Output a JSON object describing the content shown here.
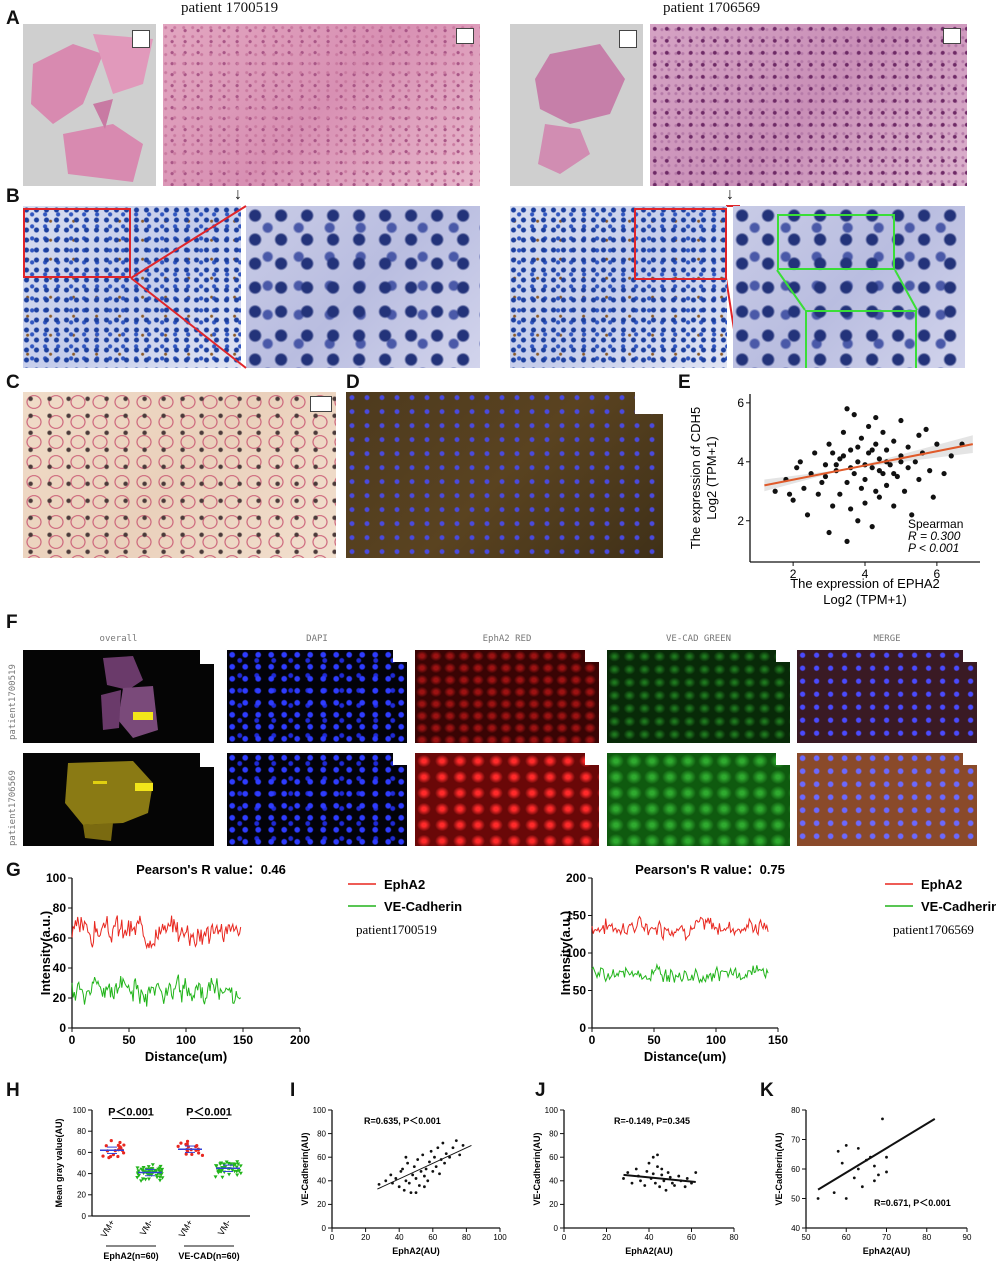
{
  "panel_labels": {
    "A": "A",
    "B": "B",
    "C": "C",
    "D": "D",
    "E": "E",
    "F": "F",
    "G": "G",
    "H": "H",
    "I": "I",
    "J": "J",
    "K": "K"
  },
  "patients": {
    "left": "patient 1700519",
    "right": "patient 1706569"
  },
  "arrow_glyph": "↓",
  "panel_F": {
    "column_titles": [
      "overall",
      "DAPI",
      "EphA2 RED",
      "VE-CAD GREEN",
      "MERGE"
    ],
    "row_labels": [
      "patient1700519",
      "patient1706569"
    ]
  },
  "colors": {
    "red": "#e8271f",
    "green": "#22b41b",
    "orange": "#e05a2a",
    "blue": "#3340d6",
    "black": "#111111"
  },
  "chart_data": [
    {
      "id": "E",
      "type": "scatter",
      "xlabel": "The expression of EPHA2",
      "xlabel2": "Log2 (TPM+1)",
      "ylabel": "The expression of CDH5",
      "ylabel2": "Log2 (TPM+1)",
      "xlim": [
        0.8,
        7.2
      ],
      "ylim": [
        0.6,
        6.3
      ],
      "xticks": [
        2,
        4,
        6
      ],
      "yticks": [
        2,
        4,
        6
      ],
      "annotation": [
        "Spearman",
        "R = 0.300",
        "P < 0.001"
      ],
      "fit": {
        "x": [
          1.2,
          7.0
        ],
        "y": [
          3.2,
          4.6
        ]
      },
      "points": [
        [
          1.5,
          3.0
        ],
        [
          1.8,
          3.4
        ],
        [
          2.0,
          2.7
        ],
        [
          2.1,
          3.8
        ],
        [
          2.3,
          3.1
        ],
        [
          2.4,
          2.2
        ],
        [
          2.5,
          3.6
        ],
        [
          2.6,
          4.3
        ],
        [
          2.7,
          2.9
        ],
        [
          2.8,
          3.3
        ],
        [
          2.9,
          3.9
        ],
        [
          3.0,
          1.6
        ],
        [
          3.0,
          4.6
        ],
        [
          3.1,
          2.5
        ],
        [
          3.2,
          3.7
        ],
        [
          3.3,
          4.1
        ],
        [
          3.3,
          2.9
        ],
        [
          3.4,
          5.0
        ],
        [
          3.5,
          3.3
        ],
        [
          3.5,
          1.3
        ],
        [
          3.6,
          4.4
        ],
        [
          3.6,
          2.4
        ],
        [
          3.7,
          3.6
        ],
        [
          3.7,
          5.6
        ],
        [
          3.8,
          2.0
        ],
        [
          3.8,
          4.0
        ],
        [
          3.9,
          3.1
        ],
        [
          3.9,
          4.8
        ],
        [
          4.0,
          3.4
        ],
        [
          4.0,
          2.6
        ],
        [
          4.1,
          4.3
        ],
        [
          4.1,
          5.2
        ],
        [
          4.2,
          3.8
        ],
        [
          4.2,
          1.8
        ],
        [
          4.3,
          3.0
        ],
        [
          4.3,
          4.6
        ],
        [
          4.4,
          4.1
        ],
        [
          4.4,
          2.8
        ],
        [
          4.5,
          3.6
        ],
        [
          4.5,
          5.0
        ],
        [
          4.6,
          4.4
        ],
        [
          4.6,
          3.2
        ],
        [
          4.7,
          3.9
        ],
        [
          4.8,
          2.5
        ],
        [
          4.8,
          4.7
        ],
        [
          4.9,
          3.5
        ],
        [
          5.0,
          4.2
        ],
        [
          5.0,
          5.4
        ],
        [
          5.1,
          3.0
        ],
        [
          5.2,
          4.5
        ],
        [
          5.2,
          3.8
        ],
        [
          5.3,
          2.2
        ],
        [
          5.4,
          4.0
        ],
        [
          5.5,
          4.9
        ],
        [
          5.5,
          3.4
        ],
        [
          5.6,
          4.3
        ],
        [
          5.8,
          3.7
        ],
        [
          5.9,
          2.8
        ],
        [
          6.0,
          4.6
        ],
        [
          6.2,
          3.6
        ],
        [
          6.4,
          4.2
        ],
        [
          6.7,
          4.6
        ],
        [
          3.2,
          3.9
        ],
        [
          3.4,
          4.2
        ],
        [
          3.6,
          3.8
        ],
        [
          3.8,
          4.5
        ],
        [
          4.0,
          3.9
        ],
        [
          4.2,
          4.4
        ],
        [
          4.4,
          3.7
        ],
        [
          4.6,
          4.0
        ],
        [
          4.8,
          3.6
        ],
        [
          5.0,
          4.0
        ],
        [
          3.1,
          4.3
        ],
        [
          2.9,
          3.5
        ],
        [
          2.2,
          4.0
        ],
        [
          1.9,
          2.9
        ],
        [
          3.5,
          5.8
        ],
        [
          4.3,
          5.5
        ],
        [
          5.7,
          5.1
        ]
      ]
    },
    {
      "id": "G1",
      "type": "line",
      "title": "Pearson's R value：0.46",
      "xlabel": "Distance(um)",
      "ylabel": "Intensity(a.u.)",
      "xlim": [
        0,
        200
      ],
      "ylim": [
        0,
        100
      ],
      "xticks": [
        0,
        50,
        100,
        150,
        200
      ],
      "yticks": [
        0,
        20,
        40,
        60,
        80,
        100
      ],
      "series": [
        {
          "name": "EphA2",
          "color": "#e8271f",
          "mean": 65,
          "amp": 11,
          "seed": 3
        },
        {
          "name": "VE-Cadherin",
          "color": "#22b41b",
          "mean": 25,
          "amp": 10,
          "seed": 11
        }
      ],
      "x_extent": [
        0,
        148
      ],
      "n": 150,
      "legend_note": "patient1700519"
    },
    {
      "id": "G2",
      "type": "line",
      "title": "Pearson's R value：0.75",
      "xlabel": "Distance(um)",
      "ylabel": "Intensity(a.u.)",
      "xlim": [
        0,
        150
      ],
      "ylim": [
        0,
        200
      ],
      "xticks": [
        0,
        50,
        100,
        150
      ],
      "yticks": [
        0,
        50,
        100,
        150,
        200
      ],
      "series": [
        {
          "name": "EphA2",
          "color": "#e8271f",
          "mean": 135,
          "amp": 15,
          "seed": 7
        },
        {
          "name": "VE-Cadherin",
          "color": "#22b41b",
          "mean": 72,
          "amp": 12,
          "seed": 19
        }
      ],
      "x_extent": [
        0,
        142
      ],
      "n": 142,
      "legend_note": "patient1706569"
    },
    {
      "id": "H",
      "type": "scatter-dot",
      "ylabel": "Mean gray value(AU)",
      "ylim": [
        0,
        100
      ],
      "yticks": [
        0,
        20,
        40,
        60,
        80,
        100
      ],
      "categories": [
        "VM+",
        "VM-",
        "VM+",
        "VM-"
      ],
      "groups": [
        "EphA2(n=60)",
        "VE-CAD(n=60)"
      ],
      "p_values": [
        "P＜0.001",
        "P＜0.001"
      ],
      "means": [
        62,
        41,
        63,
        45
      ],
      "colors": [
        "#e8271f",
        "#22b41b",
        "#e8271f",
        "#22b41b"
      ]
    },
    {
      "id": "I",
      "type": "scatter",
      "xlabel": "EphA2(AU)",
      "ylabel": "VE-Cadherin(AU)",
      "xlim": [
        0,
        100
      ],
      "ylim": [
        0,
        100
      ],
      "xticks": [
        0,
        20,
        40,
        60,
        80,
        100
      ],
      "yticks": [
        0,
        20,
        40,
        60,
        80,
        100
      ],
      "annotation": "R=0.635, P＜0.001",
      "fit": {
        "x": [
          27,
          83
        ],
        "y": [
          33,
          70
        ]
      },
      "points": [
        [
          28,
          37
        ],
        [
          32,
          40
        ],
        [
          35,
          45
        ],
        [
          36,
          38
        ],
        [
          38,
          42
        ],
        [
          40,
          35
        ],
        [
          41,
          48
        ],
        [
          42,
          50
        ],
        [
          43,
          32
        ],
        [
          44,
          40
        ],
        [
          45,
          55
        ],
        [
          46,
          38
        ],
        [
          47,
          30
        ],
        [
          48,
          45
        ],
        [
          49,
          52
        ],
        [
          50,
          42
        ],
        [
          51,
          58
        ],
        [
          52,
          36
        ],
        [
          53,
          48
        ],
        [
          54,
          62
        ],
        [
          55,
          44
        ],
        [
          56,
          50
        ],
        [
          57,
          40
        ],
        [
          58,
          56
        ],
        [
          59,
          65
        ],
        [
          60,
          48
        ],
        [
          61,
          60
        ],
        [
          62,
          52
        ],
        [
          63,
          68
        ],
        [
          64,
          46
        ],
        [
          65,
          58
        ],
        [
          66,
          72
        ],
        [
          67,
          55
        ],
        [
          68,
          63
        ],
        [
          70,
          60
        ],
        [
          72,
          68
        ],
        [
          74,
          74
        ],
        [
          76,
          62
        ],
        [
          78,
          70
        ],
        [
          44,
          60
        ],
        [
          50,
          30
        ],
        [
          55,
          35
        ]
      ]
    },
    {
      "id": "J",
      "type": "scatter",
      "xlabel": "EphA2(AU)",
      "ylabel": "VE-Cadherin(AU)",
      "xlim": [
        0,
        80
      ],
      "ylim": [
        0,
        100
      ],
      "xticks": [
        0,
        20,
        40,
        60,
        80
      ],
      "yticks": [
        0,
        20,
        40,
        60,
        80,
        100
      ],
      "annotation": "R=-0.149, P=0.345",
      "fit": {
        "x": [
          28,
          62
        ],
        "y": [
          45,
          39
        ]
      },
      "points": [
        [
          28,
          42
        ],
        [
          30,
          47
        ],
        [
          32,
          38
        ],
        [
          34,
          50
        ],
        [
          35,
          44
        ],
        [
          36,
          40
        ],
        [
          38,
          36
        ],
        [
          39,
          48
        ],
        [
          40,
          55
        ],
        [
          41,
          42
        ],
        [
          42,
          60
        ],
        [
          43,
          38
        ],
        [
          44,
          52
        ],
        [
          45,
          35
        ],
        [
          46,
          45
        ],
        [
          47,
          40
        ],
        [
          48,
          32
        ],
        [
          49,
          47
        ],
        [
          50,
          43
        ],
        [
          51,
          38
        ],
        [
          52,
          36
        ],
        [
          54,
          44
        ],
        [
          55,
          40
        ],
        [
          57,
          35
        ],
        [
          58,
          42
        ],
        [
          60,
          38
        ],
        [
          62,
          47
        ],
        [
          44,
          62
        ],
        [
          42,
          46
        ],
        [
          46,
          50
        ]
      ]
    },
    {
      "id": "K",
      "type": "scatter",
      "xlabel": "EphA2(AU)",
      "ylabel": "VE-Cadherin(AU)",
      "xlim": [
        50,
        90
      ],
      "ylim": [
        40,
        80
      ],
      "xticks": [
        50,
        60,
        70,
        80,
        90
      ],
      "yticks": [
        40,
        50,
        60,
        70,
        80
      ],
      "annotation": "R=0.671, P＜0.001",
      "fit": {
        "x": [
          53,
          82
        ],
        "y": [
          53,
          77
        ]
      },
      "points": [
        [
          53,
          50
        ],
        [
          57,
          52
        ],
        [
          58,
          66
        ],
        [
          59,
          62
        ],
        [
          60,
          68
        ],
        [
          60,
          50
        ],
        [
          62,
          57
        ],
        [
          63,
          67
        ],
        [
          63,
          60
        ],
        [
          64,
          54
        ],
        [
          65,
          63
        ],
        [
          66,
          64
        ],
        [
          67,
          61
        ],
        [
          67,
          56
        ],
        [
          68,
          58
        ],
        [
          69,
          77
        ],
        [
          70,
          64
        ],
        [
          70,
          59
        ]
      ]
    }
  ]
}
